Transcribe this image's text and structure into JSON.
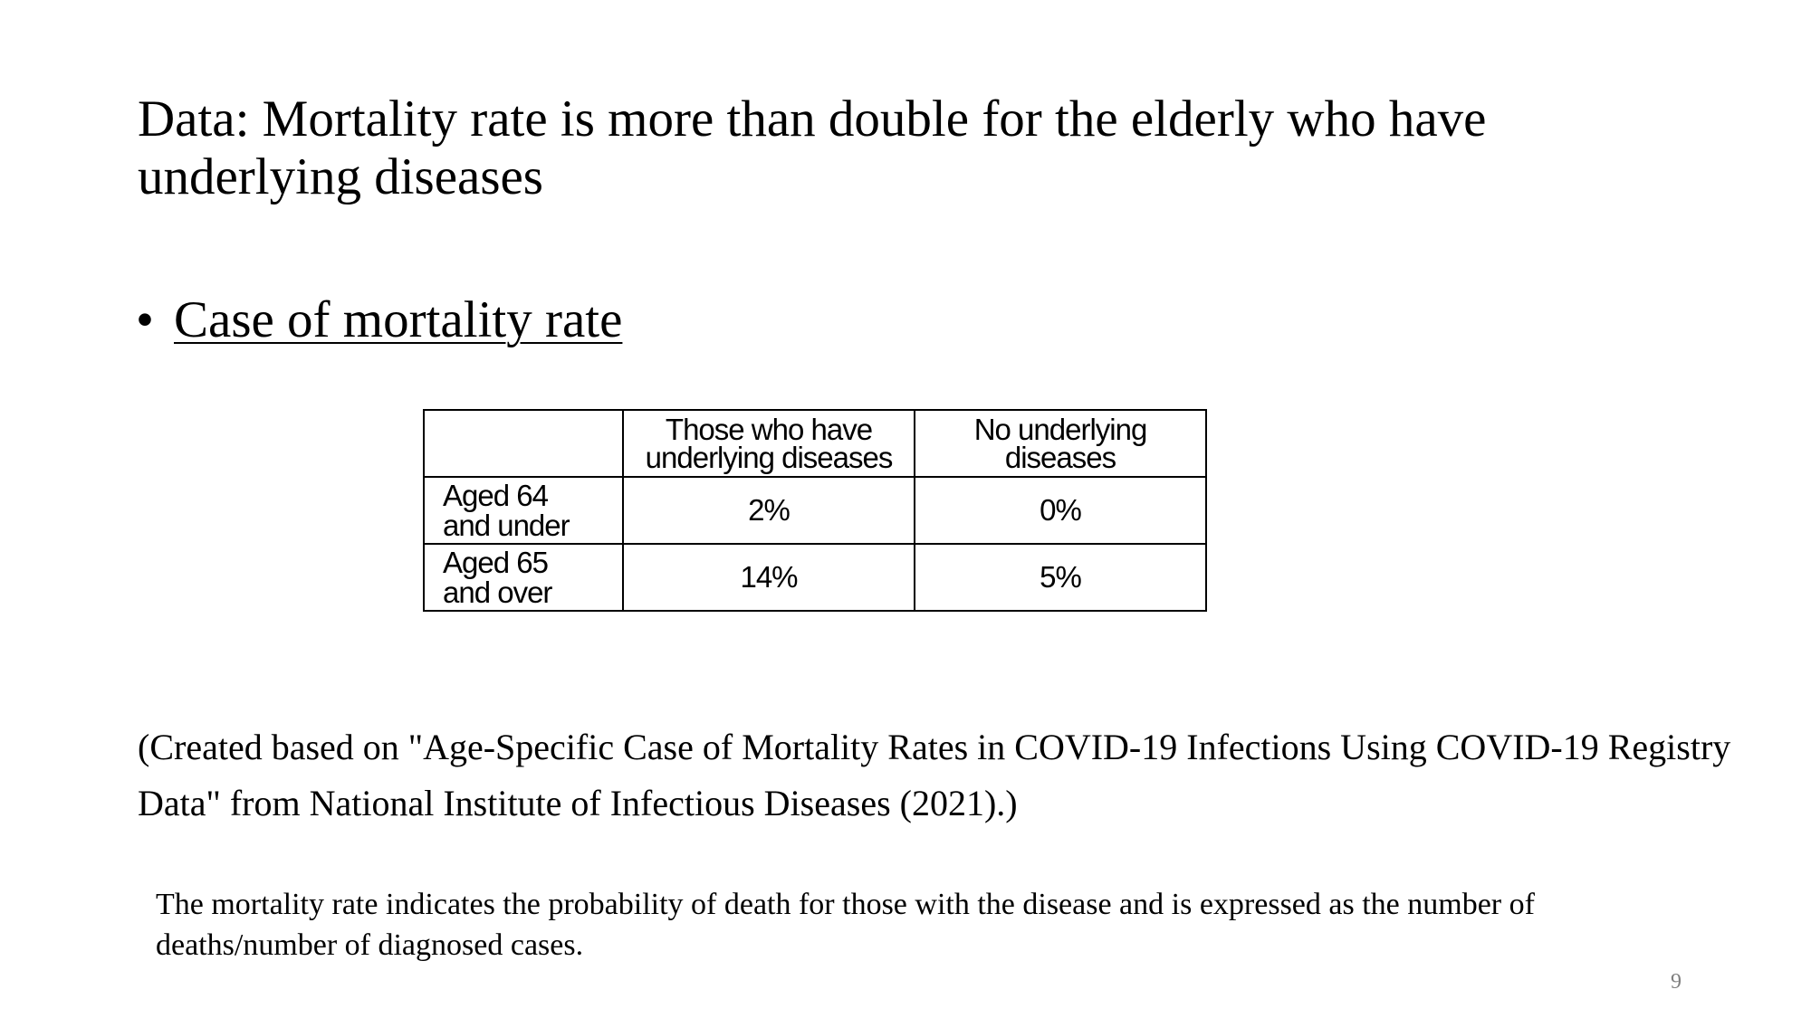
{
  "slide": {
    "title": "Data: Mortality rate is more than double for the elderly who have underlying diseases",
    "bullet_symbol": "•",
    "bullet_text": "Case of mortality rate",
    "source_note": "(Created based on \"Age-Specific Case of Mortality Rates in COVID-19 Infections Using COVID-19 Registry Data\" from National Institute of Infectious Diseases (2021).)",
    "footnote": "The mortality rate indicates the probability of death for those with the disease and is expressed as the number of deaths/number of diagnosed cases.",
    "page_number": "9"
  },
  "table": {
    "corner": "",
    "header_line1": "Those who have",
    "header_line2": "underlying diseases",
    "header_b": "No underlying diseases",
    "rows": [
      {
        "label_line1": "Aged 64",
        "label_line2": "and under",
        "with_diseases": "2%",
        "no_diseases": "0%"
      },
      {
        "label_line1": "Aged 65",
        "label_line2": "and over",
        "with_diseases": "14%",
        "no_diseases": "5%"
      }
    ]
  }
}
